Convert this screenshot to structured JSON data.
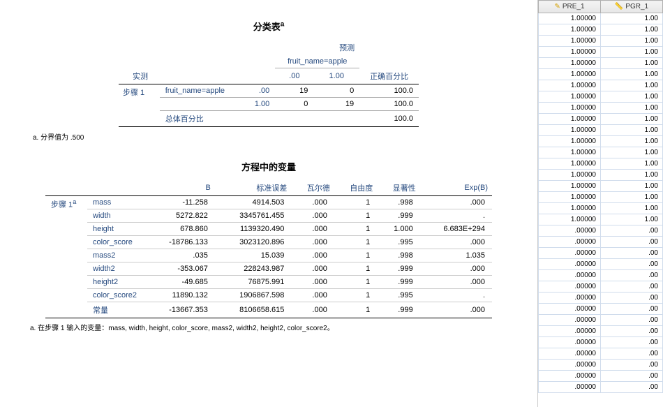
{
  "classification": {
    "title": "分类表",
    "title_sup": "a",
    "predicted_header": "预测",
    "dv_label": "fruit_name=apple",
    "observed_header": "实测",
    "col00": ".00",
    "col10": "1.00",
    "pct_correct_header": "正确百分比",
    "step_label": "步骤 1",
    "row1_cat": ".00",
    "row1_v1": "19",
    "row1_v2": "0",
    "row1_pct": "100.0",
    "row2_cat": "1.00",
    "row2_v1": "0",
    "row2_v2": "19",
    "row2_pct": "100.0",
    "total_label": "总体百分比",
    "total_pct": "100.0",
    "footnote": "a. 分界值为 .500"
  },
  "equation": {
    "title": "方程中的变量",
    "headers": {
      "B": "B",
      "SE": "标准误差",
      "Wald": "瓦尔德",
      "df": "自由度",
      "Sig": "显著性",
      "ExpB": "Exp(B)"
    },
    "step_label": "步骤 1",
    "step_sup": "a",
    "rows": [
      {
        "name": "mass",
        "B": "-11.258",
        "SE": "4914.503",
        "Wald": ".000",
        "df": "1",
        "Sig": ".998",
        "ExpB": ".000"
      },
      {
        "name": "width",
        "B": "5272.822",
        "SE": "3345761.455",
        "Wald": ".000",
        "df": "1",
        "Sig": ".999",
        "ExpB": "."
      },
      {
        "name": "height",
        "B": "678.860",
        "SE": "1139320.490",
        "Wald": ".000",
        "df": "1",
        "Sig": "1.000",
        "ExpB": "6.683E+294"
      },
      {
        "name": "color_score",
        "B": "-18786.133",
        "SE": "3023120.896",
        "Wald": ".000",
        "df": "1",
        "Sig": ".995",
        "ExpB": ".000"
      },
      {
        "name": "mass2",
        "B": ".035",
        "SE": "15.039",
        "Wald": ".000",
        "df": "1",
        "Sig": ".998",
        "ExpB": "1.035"
      },
      {
        "name": "width2",
        "B": "-353.067",
        "SE": "228243.987",
        "Wald": ".000",
        "df": "1",
        "Sig": ".999",
        "ExpB": ".000"
      },
      {
        "name": "height2",
        "B": "-49.685",
        "SE": "76875.991",
        "Wald": ".000",
        "df": "1",
        "Sig": ".999",
        "ExpB": ".000"
      },
      {
        "name": "color_score2",
        "B": "11890.132",
        "SE": "1906867.598",
        "Wald": ".000",
        "df": "1",
        "Sig": ".995",
        "ExpB": "."
      },
      {
        "name": "常量",
        "B": "-13667.353",
        "SE": "8106658.615",
        "Wald": ".000",
        "df": "1",
        "Sig": ".999",
        "ExpB": ".000"
      }
    ],
    "footnote": "a. 在步骤 1 输入的变量：mass, width, height, color_score, mass2, width2, height2, color_score2。"
  },
  "grid": {
    "col1": "PRE_1",
    "col2": "PGR_1",
    "rows": [
      [
        "1.00000",
        "1.00"
      ],
      [
        "1.00000",
        "1.00"
      ],
      [
        "1.00000",
        "1.00"
      ],
      [
        "1.00000",
        "1.00"
      ],
      [
        "1.00000",
        "1.00"
      ],
      [
        "1.00000",
        "1.00"
      ],
      [
        "1.00000",
        "1.00"
      ],
      [
        "1.00000",
        "1.00"
      ],
      [
        "1.00000",
        "1.00"
      ],
      [
        "1.00000",
        "1.00"
      ],
      [
        "1.00000",
        "1.00"
      ],
      [
        "1.00000",
        "1.00"
      ],
      [
        "1.00000",
        "1.00"
      ],
      [
        "1.00000",
        "1.00"
      ],
      [
        "1.00000",
        "1.00"
      ],
      [
        "1.00000",
        "1.00"
      ],
      [
        "1.00000",
        "1.00"
      ],
      [
        "1.00000",
        "1.00"
      ],
      [
        "1.00000",
        "1.00"
      ],
      [
        ".00000",
        ".00"
      ],
      [
        ".00000",
        ".00"
      ],
      [
        ".00000",
        ".00"
      ],
      [
        ".00000",
        ".00"
      ],
      [
        ".00000",
        ".00"
      ],
      [
        ".00000",
        ".00"
      ],
      [
        ".00000",
        ".00"
      ],
      [
        ".00000",
        ".00"
      ],
      [
        ".00000",
        ".00"
      ],
      [
        ".00000",
        ".00"
      ],
      [
        ".00000",
        ".00"
      ],
      [
        ".00000",
        ".00"
      ],
      [
        ".00000",
        ".00"
      ],
      [
        ".00000",
        ".00"
      ],
      [
        ".00000",
        ".00"
      ]
    ]
  }
}
